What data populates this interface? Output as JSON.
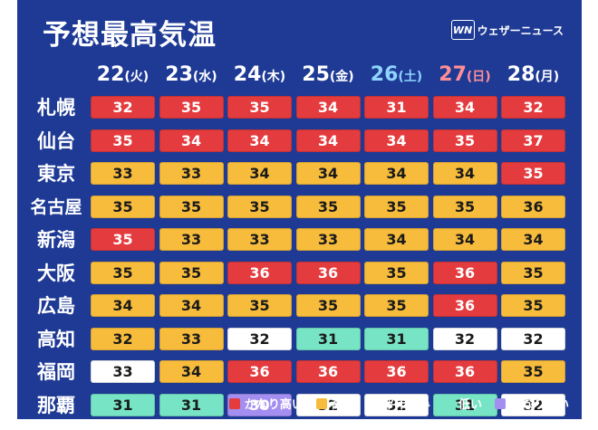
{
  "title": "予想最高気温",
  "brand": {
    "logo": "WN",
    "name": "ウェザーニュース"
  },
  "days": [
    {
      "num": "22",
      "wk": "(火)",
      "type": "weekday"
    },
    {
      "num": "23",
      "wk": "(水)",
      "type": "weekday"
    },
    {
      "num": "24",
      "wk": "(木)",
      "type": "weekday"
    },
    {
      "num": "25",
      "wk": "(金)",
      "type": "weekday"
    },
    {
      "num": "26",
      "wk": "(土)",
      "type": "sat"
    },
    {
      "num": "27",
      "wk": "(日)",
      "type": "sun"
    },
    {
      "num": "28",
      "wk": "(月)",
      "type": "weekday"
    }
  ],
  "cities": [
    {
      "name": "札幌",
      "temps": [
        "32",
        "35",
        "35",
        "34",
        "31",
        "34",
        "32"
      ],
      "levels": [
        "very-high",
        "very-high",
        "very-high",
        "very-high",
        "very-high",
        "very-high",
        "very-high"
      ]
    },
    {
      "name": "仙台",
      "temps": [
        "35",
        "34",
        "34",
        "34",
        "34",
        "35",
        "37"
      ],
      "levels": [
        "very-high",
        "very-high",
        "very-high",
        "very-high",
        "very-high",
        "very-high",
        "very-high"
      ]
    },
    {
      "name": "東京",
      "temps": [
        "33",
        "33",
        "34",
        "34",
        "34",
        "34",
        "35"
      ],
      "levels": [
        "high",
        "high",
        "high",
        "high",
        "high",
        "high",
        "very-high"
      ]
    },
    {
      "name": "名古屋",
      "temps": [
        "35",
        "35",
        "35",
        "35",
        "35",
        "35",
        "36"
      ],
      "levels": [
        "high",
        "high",
        "high",
        "high",
        "high",
        "high",
        "high"
      ]
    },
    {
      "name": "新潟",
      "temps": [
        "35",
        "33",
        "33",
        "33",
        "34",
        "34",
        "34"
      ],
      "levels": [
        "very-high",
        "high",
        "high",
        "high",
        "high",
        "high",
        "high"
      ]
    },
    {
      "name": "大阪",
      "temps": [
        "35",
        "35",
        "36",
        "36",
        "35",
        "36",
        "35"
      ],
      "levels": [
        "high",
        "high",
        "very-high",
        "very-high",
        "high",
        "very-high",
        "high"
      ]
    },
    {
      "name": "広島",
      "temps": [
        "34",
        "34",
        "35",
        "35",
        "35",
        "36",
        "35"
      ],
      "levels": [
        "high",
        "high",
        "high",
        "high",
        "high",
        "very-high",
        "high"
      ]
    },
    {
      "name": "高知",
      "temps": [
        "32",
        "33",
        "32",
        "31",
        "31",
        "32",
        "32"
      ],
      "levels": [
        "high",
        "high",
        "normal",
        "low",
        "low",
        "normal",
        "normal"
      ]
    },
    {
      "name": "福岡",
      "temps": [
        "33",
        "34",
        "36",
        "36",
        "36",
        "36",
        "35"
      ],
      "levels": [
        "normal",
        "high",
        "very-high",
        "very-high",
        "very-high",
        "very-high",
        "high"
      ]
    },
    {
      "name": "那覇",
      "temps": [
        "31",
        "31",
        "30",
        "32",
        "32",
        "31",
        "32"
      ],
      "levels": [
        "low",
        "low",
        "very-low",
        "normal",
        "normal",
        "low",
        "normal"
      ]
    }
  ],
  "legend": [
    {
      "key": "very-high",
      "label": "かなり高い",
      "color": "#e43b3e"
    },
    {
      "key": "high",
      "label": "高い",
      "color": "#f7bc3c"
    },
    {
      "key": "normal",
      "label": "平年並み",
      "color": "#ffffff"
    },
    {
      "key": "low",
      "label": "低い",
      "color": "#77e5c5"
    },
    {
      "key": "very-low",
      "label": "かなり低い",
      "color": "#a48ef0"
    }
  ]
}
